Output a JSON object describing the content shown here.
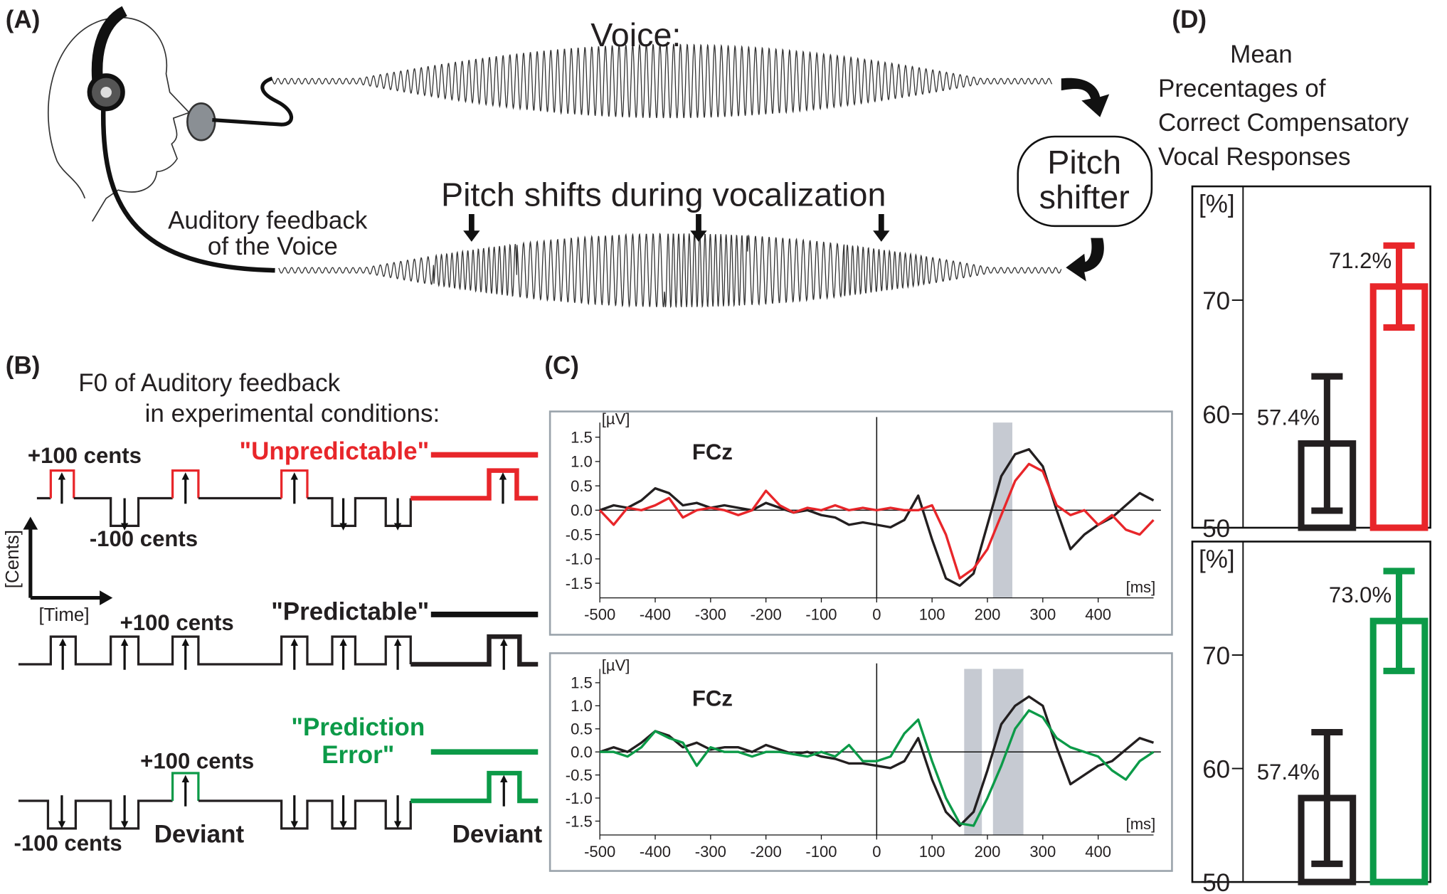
{
  "panels": {
    "a": "(A)",
    "b": "(B)",
    "c": "(C)",
    "d": "(D)"
  },
  "panel_a": {
    "voice": "Voice:",
    "pitch_shifts": "Pitch shifts during vocalization",
    "feedback_lines": [
      "Auditory feedback",
      "of the Voice"
    ],
    "shifter_lines": [
      "Pitch",
      "shifter"
    ]
  },
  "panel_b": {
    "title_lines": [
      "F0 of Auditory feedback",
      "in experimental conditions:"
    ],
    "unpredictable": "\"Unpredictable\"",
    "predictable": "\"Predictable\"",
    "prediction_error_lines": [
      "\"Prediction",
      "Error\""
    ],
    "plus_1": "+100 cents",
    "minus_1": "-100 cents",
    "y_axis": "[Cents]",
    "x_axis": "[Time]",
    "plus_2": "+100 cents",
    "plus_3": "+100 cents",
    "minus_3": "-100 cents",
    "deviant_1": "Deviant",
    "deviant_2": "Deviant"
  },
  "panel_d": {
    "title_lines": [
      "Mean",
      "Precentages of",
      "Correct Compensatory",
      "Vocal Responses"
    ]
  },
  "chart_data": [
    {
      "type": "line",
      "title": "FCz",
      "y_label": "[µV]",
      "x_label": "[ms]",
      "x": [
        -500,
        -475,
        -450,
        -425,
        -400,
        -375,
        -350,
        -325,
        -300,
        -275,
        -250,
        -225,
        -200,
        -175,
        -150,
        -125,
        -100,
        -75,
        -50,
        -25,
        0,
        25,
        50,
        75,
        100,
        125,
        150,
        175,
        200,
        225,
        250,
        275,
        300,
        325,
        350,
        375,
        400,
        425,
        450,
        475,
        500
      ],
      "series": [
        {
          "color": "#231f20",
          "values": [
            0.0,
            0.1,
            0.05,
            0.2,
            0.45,
            0.35,
            0.1,
            0.15,
            0.05,
            0.1,
            0.05,
            0.0,
            0.15,
            0.05,
            -0.05,
            0.0,
            -0.1,
            -0.15,
            -0.3,
            -0.25,
            -0.3,
            -0.35,
            -0.2,
            0.3,
            -0.6,
            -1.4,
            -1.55,
            -1.3,
            -0.3,
            0.7,
            1.15,
            1.25,
            0.9,
            0.0,
            -0.8,
            -0.5,
            -0.3,
            -0.15,
            0.1,
            0.35,
            0.2
          ]
        },
        {
          "color": "#e8262a",
          "values": [
            0.0,
            -0.3,
            0.05,
            0.0,
            0.1,
            0.25,
            -0.15,
            0.0,
            0.05,
            0.0,
            -0.1,
            0.0,
            0.4,
            0.1,
            -0.05,
            0.05,
            0.0,
            0.1,
            0.0,
            0.05,
            0.0,
            0.05,
            0.0,
            0.0,
            0.1,
            -0.5,
            -1.4,
            -1.2,
            -0.8,
            -0.1,
            0.6,
            0.95,
            0.8,
            0.1,
            -0.1,
            0.0,
            -0.3,
            -0.1,
            -0.4,
            -0.5,
            -0.2
          ]
        }
      ],
      "shaded": [
        [
          210,
          245
        ]
      ],
      "xlim": [
        -500,
        500
      ],
      "ylim": [
        -1.8,
        1.8
      ],
      "xticks": [
        -500,
        -400,
        -300,
        -200,
        -100,
        0,
        100,
        200,
        300,
        400
      ],
      "yticks": [
        -1.5,
        {
          "value": -1,
          "label": "-1.0"
        },
        -0.5,
        {
          "value": 0,
          "label": "0.0"
        },
        0.5,
        {
          "value": 1,
          "label": "1.0"
        },
        1.5
      ]
    },
    {
      "type": "line",
      "title": "FCz",
      "y_label": "[µV]",
      "x_label": "[ms]",
      "x": [
        -500,
        -475,
        -450,
        -425,
        -400,
        -375,
        -350,
        -325,
        -300,
        -275,
        -250,
        -225,
        -200,
        -175,
        -150,
        -125,
        -100,
        -75,
        -50,
        -25,
        0,
        25,
        50,
        75,
        100,
        125,
        150,
        175,
        200,
        225,
        250,
        275,
        300,
        325,
        350,
        375,
        400,
        425,
        450,
        475,
        500
      ],
      "series": [
        {
          "color": "#231f20",
          "values": [
            0.0,
            0.1,
            0.0,
            0.2,
            0.45,
            0.35,
            0.1,
            0.2,
            0.05,
            0.1,
            0.1,
            0.0,
            0.15,
            0.05,
            -0.05,
            0.0,
            -0.1,
            -0.15,
            -0.25,
            -0.25,
            -0.3,
            -0.35,
            -0.2,
            0.3,
            -0.6,
            -1.3,
            -1.6,
            -1.3,
            -0.4,
            0.6,
            1.0,
            1.2,
            1.0,
            0.1,
            -0.7,
            -0.5,
            -0.3,
            -0.2,
            0.05,
            0.3,
            0.2
          ]
        },
        {
          "color": "#0c9a48",
          "values": [
            0.0,
            0.0,
            -0.1,
            0.1,
            0.45,
            0.3,
            0.2,
            -0.3,
            0.1,
            0.0,
            0.0,
            -0.1,
            0.0,
            0.0,
            -0.05,
            -0.1,
            0.0,
            -0.1,
            0.15,
            -0.2,
            -0.2,
            -0.1,
            0.4,
            0.7,
            -0.2,
            -1.0,
            -1.55,
            -1.6,
            -1.0,
            -0.3,
            0.5,
            0.9,
            0.75,
            0.3,
            0.1,
            0.0,
            -0.1,
            -0.4,
            -0.6,
            -0.2,
            0.0
          ]
        }
      ],
      "shaded": [
        [
          158,
          190
        ],
        [
          210,
          265
        ]
      ],
      "xlim": [
        -500,
        500
      ],
      "ylim": [
        -1.8,
        1.8
      ],
      "xticks": [
        -500,
        -400,
        -300,
        -200,
        -100,
        0,
        100,
        200,
        300,
        400
      ],
      "yticks": [
        -1.5,
        {
          "value": -1,
          "label": "-1.0"
        },
        -0.5,
        {
          "value": 0,
          "label": "0.0"
        },
        0.5,
        {
          "value": 1,
          "label": "1.0"
        },
        1.5
      ]
    },
    {
      "type": "bar",
      "y_label": "[%]",
      "categories": [
        null,
        null
      ],
      "values": [
        57.4,
        71.2
      ],
      "value_labels": [
        "57.4%",
        "71.2%"
      ],
      "errors": [
        5.9,
        3.6
      ],
      "colors": [
        "#231f20",
        "#e8262a"
      ],
      "ylim": [
        50,
        80
      ],
      "yticks": [
        50,
        60,
        70
      ]
    },
    {
      "type": "bar",
      "y_label": "[%]",
      "categories": [
        null,
        null
      ],
      "values": [
        57.4,
        73.0
      ],
      "value_labels": [
        "57.4%",
        "73.0%"
      ],
      "errors": [
        5.8,
        4.4
      ],
      "colors": [
        "#231f20",
        "#0c9a48"
      ],
      "ylim": [
        50,
        80
      ],
      "yticks": [
        50,
        60,
        70
      ]
    }
  ]
}
